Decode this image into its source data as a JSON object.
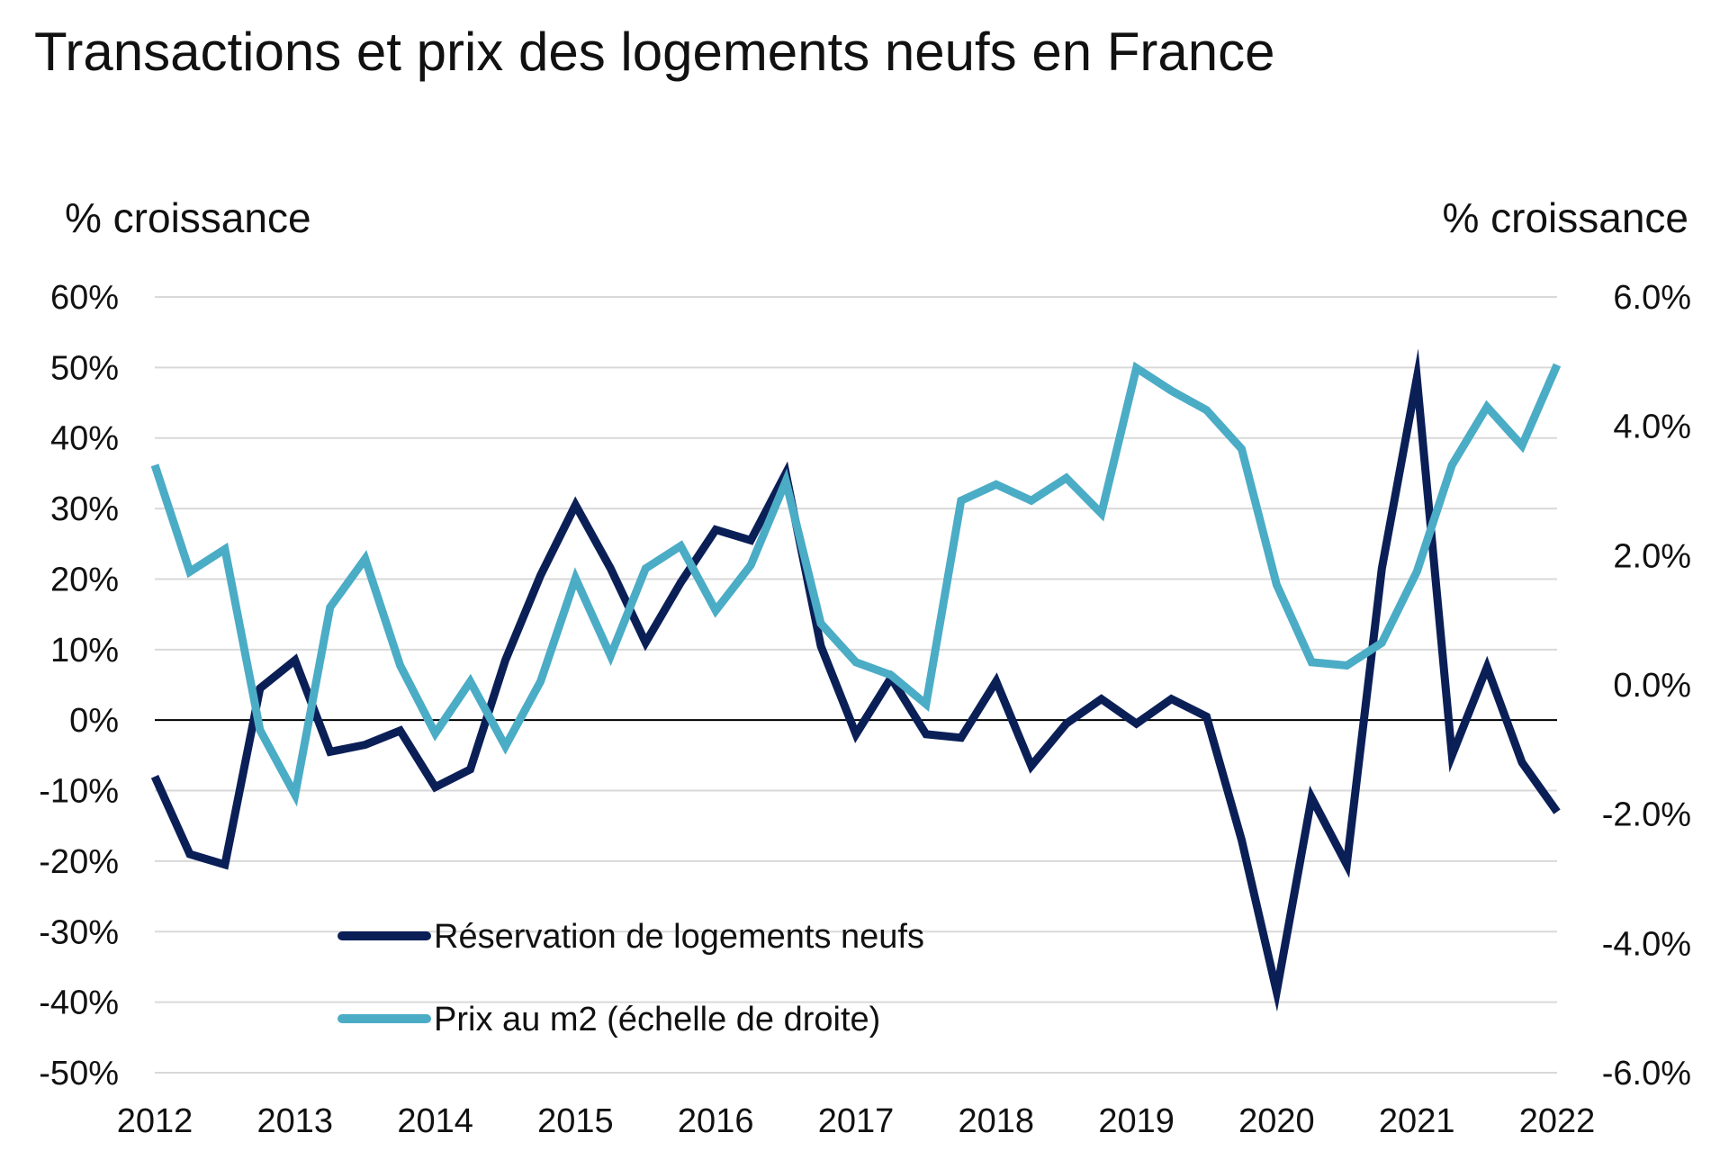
{
  "chart_data": {
    "type": "line",
    "title": "Transactions et prix des logements neufs en France",
    "y_left_label": "% croissance",
    "y_right_label": "% croissance",
    "y_left": {
      "ylim": [
        -50,
        60
      ],
      "ticks": [
        60,
        50,
        40,
        30,
        20,
        10,
        0,
        -10,
        -20,
        -30,
        -40,
        -50
      ],
      "tick_labels": [
        "60%",
        "50%",
        "40%",
        "30%",
        "20%",
        "10%",
        "0%",
        "-10%",
        "-20%",
        "-30%",
        "-40%",
        "-50%"
      ]
    },
    "y_right": {
      "ylim": [
        -6,
        6
      ],
      "ticks": [
        6,
        4,
        2,
        0,
        -2,
        -4,
        -6
      ],
      "tick_labels": [
        "6.0%",
        "4.0%",
        "2.0%",
        "0.0%",
        "-2.0%",
        "-4.0%",
        "-6.0%"
      ]
    },
    "x_axis": {
      "xlim": [
        2012,
        2022
      ],
      "ticks": [
        2012,
        2013,
        2014,
        2015,
        2016,
        2017,
        2018,
        2019,
        2020,
        2021,
        2022
      ],
      "tick_labels": [
        "2012",
        "2013",
        "2014",
        "2015",
        "2016",
        "2017",
        "2018",
        "2019",
        "2020",
        "2021",
        "2022"
      ]
    },
    "grid": true,
    "legend_position": "bottom-left",
    "series": [
      {
        "name": "Réservation de logements neufs",
        "axis": "left",
        "color": "#0b1f57",
        "x": [
          2012.0,
          2012.25,
          2012.5,
          2012.75,
          2013.0,
          2013.25,
          2013.5,
          2013.75,
          2014.0,
          2014.25,
          2014.5,
          2014.75,
          2015.0,
          2015.25,
          2015.5,
          2015.75,
          2016.0,
          2016.25,
          2016.5,
          2016.75,
          2017.0,
          2017.25,
          2017.5,
          2017.75,
          2018.0,
          2018.25,
          2018.5,
          2018.75,
          2019.0,
          2019.25,
          2019.5,
          2019.75,
          2020.0,
          2020.25,
          2020.5,
          2020.75,
          2021.0,
          2021.25,
          2021.5,
          2021.75,
          2022.0
        ],
        "values": [
          -8,
          -19,
          -20.5,
          4.5,
          8.5,
          -4.5,
          -3.5,
          -1.5,
          -9.5,
          -7,
          8.5,
          20.5,
          30.5,
          21.5,
          11,
          19.5,
          27,
          25.5,
          35,
          10.5,
          -2,
          6,
          -2,
          -2.5,
          5.5,
          -6.5,
          -0.5,
          3,
          -0.5,
          3,
          0.5,
          -17,
          -38.5,
          -11,
          -20.5,
          21.5,
          48.5,
          -5,
          7.5,
          -6,
          -13
        ]
      },
      {
        "name": "Prix au m2 (échelle de droite)",
        "axis": "right",
        "color": "#4bacc6",
        "x": [
          2012.0,
          2012.25,
          2012.5,
          2012.75,
          2013.0,
          2013.25,
          2013.5,
          2013.75,
          2014.0,
          2014.25,
          2014.5,
          2014.75,
          2015.0,
          2015.25,
          2015.5,
          2015.75,
          2016.0,
          2016.25,
          2016.5,
          2016.75,
          2017.0,
          2017.25,
          2017.5,
          2017.75,
          2018.0,
          2018.25,
          2018.5,
          2018.75,
          2019.0,
          2019.25,
          2019.5,
          2019.75,
          2020.0,
          2020.25,
          2020.5,
          2020.75,
          2021.0,
          2021.25,
          2021.5,
          2021.75,
          2022.0
        ],
        "values": [
          3.4,
          1.75,
          2.1,
          -0.7,
          -1.7,
          1.2,
          1.95,
          0.3,
          -0.75,
          0.05,
          -0.95,
          0.05,
          1.65,
          0.45,
          1.8,
          2.15,
          1.15,
          1.85,
          3.15,
          0.95,
          0.35,
          0.15,
          -0.3,
          2.85,
          3.1,
          2.85,
          3.2,
          2.65,
          4.9,
          4.55,
          4.25,
          3.65,
          1.55,
          0.35,
          0.3,
          0.65,
          1.75,
          3.4,
          4.3,
          3.7,
          4.95
        ]
      }
    ]
  }
}
